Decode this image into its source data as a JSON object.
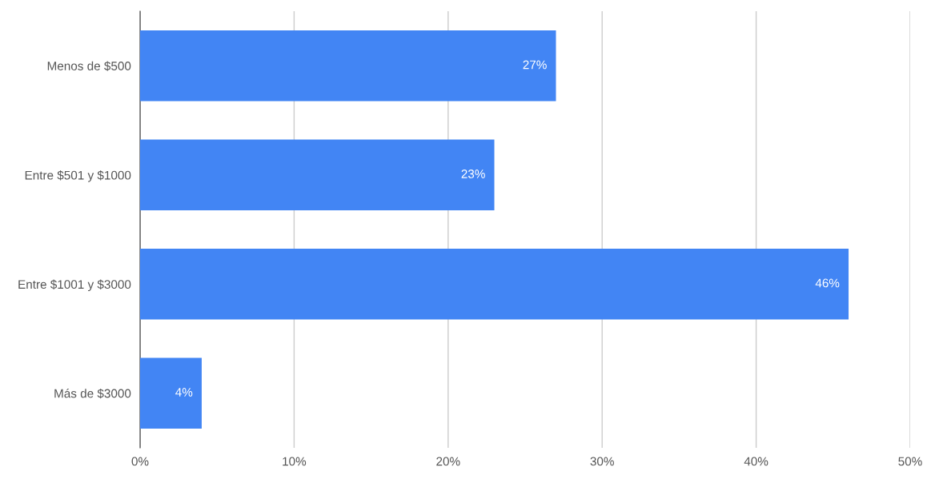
{
  "chart_data": {
    "type": "bar",
    "orientation": "horizontal",
    "categories": [
      "Menos de $500",
      "Entre $501 y $1000",
      "Entre $1001 y $3000",
      "Más de $3000"
    ],
    "values": [
      27,
      23,
      46,
      4
    ],
    "value_labels": [
      "27%",
      "23%",
      "46%",
      "4%"
    ],
    "color": "#4285f4",
    "xlim": [
      0,
      50
    ],
    "xticks": [
      {
        "value": 0,
        "label": "0%"
      },
      {
        "value": 10,
        "label": "10%"
      },
      {
        "value": 20,
        "label": "20%"
      },
      {
        "value": 30,
        "label": "30%"
      },
      {
        "value": 40,
        "label": "40%"
      },
      {
        "value": 50,
        "label": "50%"
      }
    ],
    "grid": "x",
    "legend": false
  }
}
